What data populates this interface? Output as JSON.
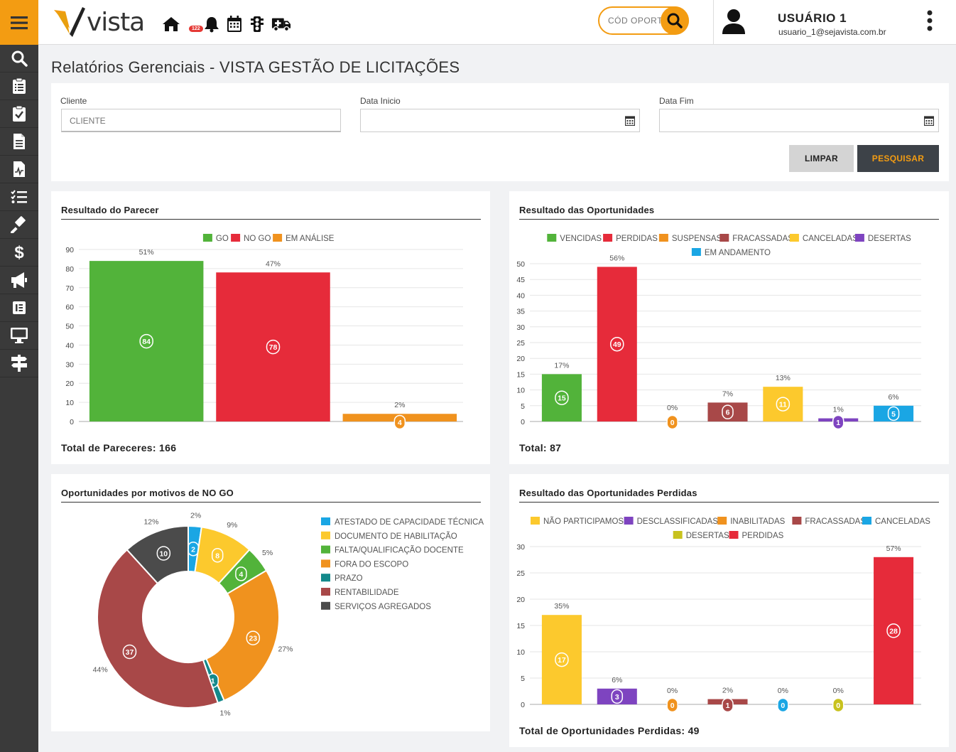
{
  "app": {
    "logo_text": "vista",
    "notification_count": "122",
    "colors": {
      "accent": "#f39c12",
      "sidebar": "#3a3a3a"
    }
  },
  "sidebar": {
    "icons": [
      "search-icon",
      "clipboard-list-icon",
      "clipboard-check-icon",
      "document-icon",
      "document-chart-icon",
      "checklist-icon",
      "gavel-icon",
      "dollar-icon",
      "megaphone-icon",
      "elementor-icon",
      "monitor-icon",
      "signpost-icon"
    ]
  },
  "topbar": {
    "icons": [
      "home-icon",
      "bell-icon",
      "calendar-icon",
      "traffic-light-icon",
      "ambulance-icon"
    ],
    "search_placeholder": "CÓD OPORT",
    "user_name": "USUÁRIO 1",
    "user_email": "usuario_1@sejavista.com.br"
  },
  "page": {
    "title": "Relatórios Gerenciais - VISTA GESTÃO DE LICITAÇÕES"
  },
  "filters": {
    "cliente_label": "Cliente",
    "cliente_placeholder": "CLIENTE",
    "data_inicio_label": "Data Inicio",
    "data_fim_label": "Data Fim",
    "limpar_label": "LIMPAR",
    "pesquisar_label": "PESQUISAR"
  },
  "chart_data": [
    {
      "id": "parecer",
      "type": "bar",
      "title": "Resultado do Parecer",
      "categories": [
        "GO",
        "NO GO",
        "EM ANÁLISE"
      ],
      "values": [
        84,
        78,
        4
      ],
      "percent_labels": [
        "51%",
        "47%",
        "2%"
      ],
      "colors": [
        "#52b33a",
        "#e62b3a",
        "#f0921e"
      ],
      "ylim": [
        0,
        90
      ],
      "yticks": [
        0,
        10,
        20,
        30,
        40,
        50,
        60,
        70,
        80,
        90
      ],
      "legend_position": "top",
      "total_label": "Total de Pareceres:",
      "total_value": "166"
    },
    {
      "id": "oportunidades",
      "type": "bar",
      "title": "Resultado das Oportunidades",
      "categories": [
        "VENCIDAS",
        "PERDIDAS",
        "SUSPENSAS",
        "FRACASSADAS",
        "CANCELADAS",
        "DESERTAS",
        "EM ANDAMENTO"
      ],
      "values": [
        15,
        49,
        0,
        6,
        11,
        1,
        5
      ],
      "percent_labels": [
        "17%",
        "56%",
        "0%",
        "7%",
        "13%",
        "1%",
        "6%"
      ],
      "colors": [
        "#52b33a",
        "#e62b3a",
        "#f0921e",
        "#a84848",
        "#fcc92d",
        "#7e44c0",
        "#1aa6e4"
      ],
      "ylim": [
        0,
        50
      ],
      "yticks": [
        0,
        5,
        10,
        15,
        20,
        25,
        30,
        35,
        40,
        45,
        50
      ],
      "legend_position": "top",
      "total_label": "Total:",
      "total_value": "87"
    },
    {
      "id": "nogo",
      "type": "pie",
      "title": "Oportunidades por motivos de NO GO",
      "categories": [
        "ATESTADO DE CAPACIDADE TÉCNICA",
        "DOCUMENTO DE HABILITAÇÃO",
        "FALTA/QUALIFICAÇÃO DOCENTE",
        "FORA DO ESCOPO",
        "PRAZO",
        "RENTABILIDADE",
        "SERVIÇOS AGREGADOS"
      ],
      "values": [
        2,
        8,
        4,
        23,
        1,
        37,
        10
      ],
      "percent_labels": [
        "2%",
        "9%",
        "5%",
        "27%",
        "1%",
        "44%",
        "12%"
      ],
      "colors": [
        "#1aa6e4",
        "#fcc92d",
        "#52b33a",
        "#f0921e",
        "#13898b",
        "#a84848",
        "#4b4b4b"
      ],
      "legend_position": "right"
    },
    {
      "id": "perdidas",
      "type": "bar",
      "title": "Resultado das Oportunidades Perdidas",
      "categories": [
        "NÃO PARTICIPAMOS",
        "DESCLASSIFICADAS",
        "INABILITADAS",
        "FRACASSADAS",
        "CANCELADAS",
        "DESERTAS",
        "PERDIDAS"
      ],
      "values": [
        17,
        3,
        0,
        1,
        0,
        0,
        28
      ],
      "percent_labels": [
        "35%",
        "6%",
        "0%",
        "2%",
        "0%",
        "0%",
        "57%"
      ],
      "colors": [
        "#fcc92d",
        "#7e44c0",
        "#f0921e",
        "#a84848",
        "#1aa6e4",
        "#c8c21e",
        "#e62b3a"
      ],
      "ylim": [
        0,
        30
      ],
      "yticks": [
        0,
        5,
        10,
        15,
        20,
        25,
        30
      ],
      "legend_position": "top",
      "total_label": "Total de Oportunidades Perdidas:",
      "total_value": "49"
    }
  ]
}
